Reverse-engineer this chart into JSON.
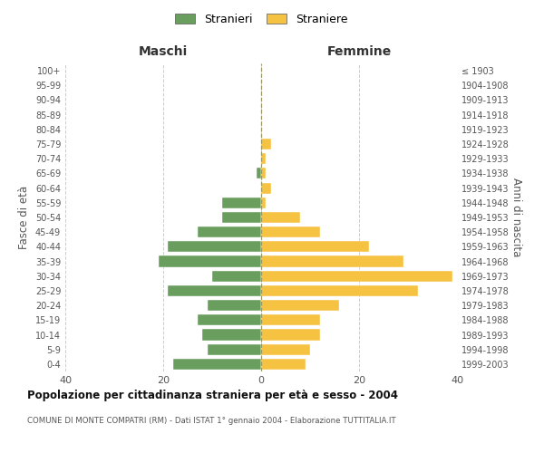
{
  "age_groups": [
    "0-4",
    "5-9",
    "10-14",
    "15-19",
    "20-24",
    "25-29",
    "30-34",
    "35-39",
    "40-44",
    "45-49",
    "50-54",
    "55-59",
    "60-64",
    "65-69",
    "70-74",
    "75-79",
    "80-84",
    "85-89",
    "90-94",
    "95-99",
    "100+"
  ],
  "birth_years": [
    "1999-2003",
    "1994-1998",
    "1989-1993",
    "1984-1988",
    "1979-1983",
    "1974-1978",
    "1969-1973",
    "1964-1968",
    "1959-1963",
    "1954-1958",
    "1949-1953",
    "1944-1948",
    "1939-1943",
    "1934-1938",
    "1929-1933",
    "1924-1928",
    "1919-1923",
    "1914-1918",
    "1909-1913",
    "1904-1908",
    "≤ 1903"
  ],
  "maschi": [
    18,
    11,
    12,
    13,
    11,
    19,
    10,
    21,
    19,
    13,
    8,
    8,
    0,
    1,
    0,
    0,
    0,
    0,
    0,
    0,
    0
  ],
  "femmine": [
    9,
    10,
    12,
    12,
    16,
    32,
    39,
    29,
    22,
    12,
    8,
    1,
    2,
    1,
    1,
    2,
    0,
    0,
    0,
    0,
    0
  ],
  "color_maschi": "#6a9e5e",
  "color_femmine": "#f5c242",
  "xlim": 40,
  "title": "Popolazione per cittadinanza straniera per età e sesso - 2004",
  "subtitle": "COMUNE DI MONTE COMPATRI (RM) - Dati ISTAT 1° gennaio 2004 - Elaborazione TUTTITALIA.IT",
  "ylabel_left": "Fasce di età",
  "ylabel_right": "Anni di nascita",
  "label_maschi": "Stranieri",
  "label_femmine": "Straniere",
  "xlabel_left": "Maschi",
  "xlabel_right": "Femmine",
  "background_color": "#ffffff",
  "grid_color": "#cccccc"
}
